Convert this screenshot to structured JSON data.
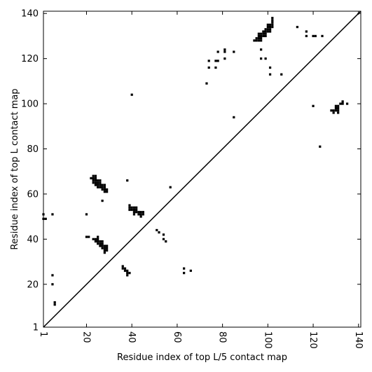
{
  "chart_data": {
    "type": "scatter",
    "xlabel": "Residue index of top L/5 contact map",
    "ylabel": "Residue index of top L contact map",
    "xlim": [
      1,
      141
    ],
    "ylim": [
      1,
      141
    ],
    "xticks": [
      1,
      20,
      40,
      60,
      80,
      100,
      120,
      140
    ],
    "yticks": [
      1,
      20,
      40,
      60,
      80,
      100,
      120,
      140
    ],
    "diagonal": true,
    "marker_color": "#000000",
    "lower_triangle": [
      [
        1,
        51
      ],
      [
        1,
        49
      ],
      [
        2,
        49
      ],
      [
        5,
        51
      ],
      [
        5,
        24
      ],
      [
        5,
        20
      ],
      [
        6,
        12
      ],
      [
        6,
        11
      ],
      [
        20,
        51
      ],
      [
        20,
        41
      ],
      [
        21,
        41
      ],
      [
        22,
        67
      ],
      [
        23,
        68
      ],
      [
        23,
        67
      ],
      [
        23,
        66
      ],
      [
        23,
        65
      ],
      [
        24,
        68
      ],
      [
        24,
        67
      ],
      [
        24,
        66
      ],
      [
        24,
        65
      ],
      [
        24,
        64
      ],
      [
        25,
        66
      ],
      [
        25,
        65
      ],
      [
        25,
        64
      ],
      [
        25,
        63
      ],
      [
        26,
        66
      ],
      [
        26,
        65
      ],
      [
        26,
        64
      ],
      [
        26,
        63
      ],
      [
        27,
        64
      ],
      [
        27,
        63
      ],
      [
        27,
        62
      ],
      [
        27,
        57
      ],
      [
        28,
        64
      ],
      [
        28,
        63
      ],
      [
        28,
        62
      ],
      [
        28,
        61
      ],
      [
        29,
        62
      ],
      [
        29,
        61
      ],
      [
        23,
        40
      ],
      [
        24,
        40
      ],
      [
        24,
        39
      ],
      [
        25,
        41
      ],
      [
        25,
        40
      ],
      [
        25,
        39
      ],
      [
        25,
        38
      ],
      [
        26,
        39
      ],
      [
        26,
        38
      ],
      [
        26,
        37
      ],
      [
        27,
        39
      ],
      [
        27,
        38
      ],
      [
        27,
        37
      ],
      [
        27,
        36
      ],
      [
        28,
        37
      ],
      [
        28,
        36
      ],
      [
        28,
        35
      ],
      [
        28,
        34
      ],
      [
        29,
        37
      ],
      [
        29,
        36
      ],
      [
        29,
        35
      ],
      [
        36,
        28
      ],
      [
        36,
        27
      ],
      [
        37,
        27
      ],
      [
        37,
        26
      ],
      [
        38,
        26
      ],
      [
        38,
        25
      ],
      [
        38,
        24
      ],
      [
        39,
        25
      ],
      [
        38,
        66
      ],
      [
        39,
        55
      ],
      [
        39,
        54
      ],
      [
        39,
        53
      ],
      [
        40,
        54
      ],
      [
        40,
        53
      ],
      [
        41,
        54
      ],
      [
        41,
        53
      ],
      [
        41,
        52
      ],
      [
        41,
        51
      ],
      [
        42,
        54
      ],
      [
        42,
        53
      ],
      [
        42,
        52
      ],
      [
        43,
        52
      ],
      [
        43,
        51
      ],
      [
        44,
        52
      ],
      [
        44,
        51
      ],
      [
        44,
        50
      ],
      [
        45,
        52
      ],
      [
        45,
        51
      ],
      [
        40,
        104
      ],
      [
        51,
        44
      ],
      [
        52,
        43
      ],
      [
        54,
        42
      ],
      [
        54,
        40
      ],
      [
        55,
        39
      ],
      [
        57,
        63
      ],
      [
        63,
        27
      ],
      [
        63,
        25
      ],
      [
        66,
        26
      ]
    ],
    "upper_triangle": [
      [
        73,
        109
      ],
      [
        74,
        119
      ],
      [
        74,
        116
      ],
      [
        77,
        119
      ],
      [
        77,
        116
      ],
      [
        78,
        123
      ],
      [
        78,
        119
      ],
      [
        81,
        124
      ],
      [
        81,
        123
      ],
      [
        81,
        120
      ],
      [
        85,
        123
      ],
      [
        85,
        94
      ],
      [
        94,
        128
      ],
      [
        95,
        129
      ],
      [
        95,
        128
      ],
      [
        96,
        131
      ],
      [
        96,
        130
      ],
      [
        96,
        129
      ],
      [
        96,
        128
      ],
      [
        97,
        131
      ],
      [
        97,
        130
      ],
      [
        97,
        129
      ],
      [
        97,
        128
      ],
      [
        97,
        124
      ],
      [
        97,
        120
      ],
      [
        98,
        132
      ],
      [
        98,
        131
      ],
      [
        98,
        130
      ],
      [
        99,
        133
      ],
      [
        99,
        132
      ],
      [
        99,
        131
      ],
      [
        99,
        130
      ],
      [
        99,
        120
      ],
      [
        100,
        135
      ],
      [
        100,
        134
      ],
      [
        100,
        133
      ],
      [
        100,
        132
      ],
      [
        101,
        135
      ],
      [
        101,
        134
      ],
      [
        101,
        133
      ],
      [
        101,
        132
      ],
      [
        101,
        116
      ],
      [
        101,
        113
      ],
      [
        102,
        138
      ],
      [
        102,
        137
      ],
      [
        102,
        136
      ],
      [
        102,
        135
      ],
      [
        102,
        134
      ],
      [
        106,
        113
      ],
      [
        113,
        134
      ],
      [
        117,
        132
      ],
      [
        117,
        130
      ],
      [
        120,
        130
      ],
      [
        120,
        99
      ],
      [
        121,
        130
      ],
      [
        123,
        81
      ],
      [
        124,
        130
      ],
      [
        128,
        97
      ],
      [
        129,
        97
      ],
      [
        129,
        96
      ],
      [
        130,
        99
      ],
      [
        130,
        98
      ],
      [
        130,
        97
      ],
      [
        131,
        99
      ],
      [
        131,
        98
      ],
      [
        131,
        97
      ],
      [
        131,
        96
      ],
      [
        132,
        100
      ],
      [
        133,
        101
      ],
      [
        133,
        100
      ],
      [
        135,
        100
      ]
    ]
  }
}
